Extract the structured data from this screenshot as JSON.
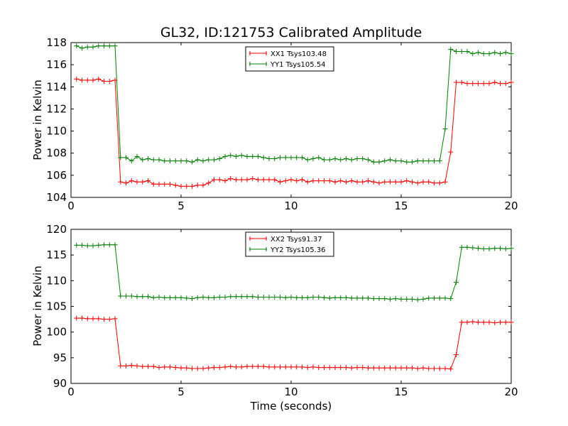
{
  "chart_data": [
    {
      "type": "line",
      "title": "GL32, ID:121753 Calibrated Amplitude",
      "xlabel": "",
      "ylabel": "Power in Kelvin",
      "xlim": [
        0,
        20
      ],
      "ylim": [
        104,
        118
      ],
      "xticks": [
        "0",
        "5",
        "10",
        "15",
        "20"
      ],
      "yticks": [
        "104",
        "106",
        "108",
        "110",
        "112",
        "114",
        "116",
        "118"
      ],
      "xtick_values": [
        0,
        5,
        10,
        15,
        20
      ],
      "ytick_values": [
        104,
        106,
        108,
        110,
        112,
        114,
        116,
        118
      ],
      "grid": false,
      "legend_position": "upper-center",
      "x": [
        0.25,
        0.5,
        0.75,
        1.0,
        1.25,
        1.5,
        1.75,
        2.0,
        2.25,
        2.5,
        2.75,
        3.0,
        3.25,
        3.5,
        3.75,
        4.0,
        4.25,
        4.5,
        4.75,
        5.0,
        5.25,
        5.5,
        5.75,
        6.0,
        6.25,
        6.5,
        6.75,
        7.0,
        7.25,
        7.5,
        7.75,
        8.0,
        8.25,
        8.5,
        8.75,
        9.0,
        9.25,
        9.5,
        9.75,
        10.0,
        10.25,
        10.5,
        10.75,
        11.0,
        11.25,
        11.5,
        11.75,
        12.0,
        12.25,
        12.5,
        12.75,
        13.0,
        13.25,
        13.5,
        13.75,
        14.0,
        14.25,
        14.5,
        14.75,
        15.0,
        15.25,
        15.5,
        15.75,
        16.0,
        16.25,
        16.5,
        16.75,
        17.0,
        17.25,
        17.5,
        17.75,
        18.0,
        18.25,
        18.5,
        18.75,
        19.0,
        19.25,
        19.5,
        19.75,
        20.0
      ],
      "series": [
        {
          "name": "XX1 Tsys103.48",
          "color": "#ff0000",
          "values": [
            114.7,
            114.6,
            114.6,
            114.6,
            114.7,
            114.5,
            114.5,
            114.6,
            105.4,
            105.3,
            105.5,
            105.4,
            105.4,
            105.5,
            105.2,
            105.2,
            105.2,
            105.2,
            105.1,
            105.0,
            105.0,
            105.0,
            105.1,
            105.1,
            105.3,
            105.6,
            105.6,
            105.5,
            105.7,
            105.6,
            105.6,
            105.6,
            105.7,
            105.6,
            105.6,
            105.6,
            105.6,
            105.4,
            105.5,
            105.6,
            105.5,
            105.6,
            105.4,
            105.5,
            105.5,
            105.5,
            105.5,
            105.4,
            105.5,
            105.4,
            105.5,
            105.4,
            105.4,
            105.5,
            105.4,
            105.3,
            105.4,
            105.4,
            105.4,
            105.4,
            105.5,
            105.4,
            105.3,
            105.4,
            105.4,
            105.3,
            105.3,
            105.4,
            108.1,
            114.4,
            114.4,
            114.3,
            114.3,
            114.3,
            114.3,
            114.3,
            114.4,
            114.3,
            114.3,
            114.4
          ]
        },
        {
          "name": "YY1 Tsys105.54",
          "color": "#008000",
          "values": [
            117.7,
            117.5,
            117.6,
            117.6,
            117.7,
            117.7,
            117.7,
            117.7,
            107.6,
            107.6,
            107.3,
            107.7,
            107.4,
            107.5,
            107.4,
            107.4,
            107.3,
            107.3,
            107.3,
            107.3,
            107.3,
            107.2,
            107.4,
            107.3,
            107.4,
            107.4,
            107.5,
            107.7,
            107.8,
            107.7,
            107.8,
            107.7,
            107.7,
            107.7,
            107.6,
            107.5,
            107.5,
            107.6,
            107.6,
            107.6,
            107.6,
            107.6,
            107.4,
            107.5,
            107.6,
            107.4,
            107.4,
            107.5,
            107.4,
            107.5,
            107.4,
            107.5,
            107.5,
            107.4,
            107.2,
            107.2,
            107.3,
            107.4,
            107.3,
            107.3,
            107.2,
            107.2,
            107.3,
            107.3,
            107.3,
            107.3,
            107.3,
            110.2,
            117.4,
            117.2,
            117.2,
            117.2,
            117.0,
            117.1,
            117.0,
            117.0,
            117.1,
            117.0,
            117.1,
            117.0
          ]
        }
      ]
    },
    {
      "type": "line",
      "title": "",
      "xlabel": "Time (seconds)",
      "ylabel": "Power in Kelvin",
      "xlim": [
        0,
        20
      ],
      "ylim": [
        90,
        120
      ],
      "xticks": [
        "0",
        "5",
        "10",
        "15",
        "20"
      ],
      "yticks": [
        "90",
        "95",
        "100",
        "105",
        "110",
        "115",
        "120"
      ],
      "xtick_values": [
        0,
        5,
        10,
        15,
        20
      ],
      "ytick_values": [
        90,
        95,
        100,
        105,
        110,
        115,
        120
      ],
      "grid": false,
      "legend_position": "upper-center",
      "x": [
        0.25,
        0.5,
        0.75,
        1.0,
        1.25,
        1.5,
        1.75,
        2.0,
        2.25,
        2.5,
        2.75,
        3.0,
        3.25,
        3.5,
        3.75,
        4.0,
        4.25,
        4.5,
        4.75,
        5.0,
        5.25,
        5.5,
        5.75,
        6.0,
        6.25,
        6.5,
        6.75,
        7.0,
        7.25,
        7.5,
        7.75,
        8.0,
        8.25,
        8.5,
        8.75,
        9.0,
        9.25,
        9.5,
        9.75,
        10.0,
        10.25,
        10.5,
        10.75,
        11.0,
        11.25,
        11.5,
        11.75,
        12.0,
        12.25,
        12.5,
        12.75,
        13.0,
        13.25,
        13.5,
        13.75,
        14.0,
        14.25,
        14.5,
        14.75,
        15.0,
        15.25,
        15.5,
        15.75,
        16.0,
        16.25,
        16.5,
        16.75,
        17.0,
        17.25,
        17.5,
        17.75,
        18.0,
        18.25,
        18.5,
        18.75,
        19.0,
        19.25,
        19.5,
        19.75,
        20.0
      ],
      "series": [
        {
          "name": "XX2 Tsys91.37",
          "color": "#ff0000",
          "values": [
            102.7,
            102.7,
            102.6,
            102.6,
            102.6,
            102.5,
            102.5,
            102.6,
            93.4,
            93.4,
            93.5,
            93.4,
            93.3,
            93.3,
            93.3,
            93.1,
            93.2,
            93.2,
            93.1,
            93.0,
            93.0,
            92.9,
            92.9,
            92.9,
            93.0,
            93.1,
            93.1,
            93.2,
            93.3,
            93.2,
            93.2,
            93.3,
            93.3,
            93.3,
            93.3,
            93.2,
            93.2,
            93.2,
            93.2,
            93.2,
            93.2,
            93.2,
            93.1,
            93.2,
            93.1,
            93.1,
            93.1,
            93.1,
            93.1,
            93.1,
            93.0,
            93.1,
            93.1,
            93.0,
            93.0,
            93.0,
            93.0,
            93.0,
            93.0,
            93.0,
            93.0,
            93.0,
            92.9,
            93.0,
            92.9,
            92.9,
            92.9,
            92.9,
            92.8,
            95.6,
            101.9,
            101.9,
            102.0,
            101.9,
            101.9,
            101.9,
            101.8,
            101.9,
            101.9,
            101.9
          ]
        },
        {
          "name": "YY2 Tsys105.36",
          "color": "#008000",
          "values": [
            116.9,
            116.9,
            116.8,
            116.8,
            116.9,
            117.0,
            117.0,
            117.0,
            107.0,
            107.0,
            107.0,
            106.9,
            106.9,
            106.9,
            106.7,
            106.8,
            106.7,
            106.7,
            106.7,
            106.7,
            106.6,
            106.5,
            106.7,
            106.8,
            106.7,
            106.7,
            106.8,
            106.8,
            106.9,
            106.9,
            106.9,
            106.9,
            106.9,
            106.8,
            106.8,
            106.8,
            106.8,
            106.8,
            106.7,
            106.8,
            106.7,
            106.7,
            106.7,
            106.8,
            106.8,
            106.7,
            106.6,
            106.7,
            106.7,
            106.7,
            106.6,
            106.6,
            106.6,
            106.6,
            106.5,
            106.5,
            106.5,
            106.4,
            106.5,
            106.4,
            106.4,
            106.4,
            106.3,
            106.4,
            106.6,
            106.6,
            106.6,
            106.6,
            106.5,
            109.7,
            116.5,
            116.5,
            116.4,
            116.3,
            116.2,
            116.2,
            116.3,
            116.3,
            116.2,
            116.3
          ]
        }
      ]
    }
  ]
}
